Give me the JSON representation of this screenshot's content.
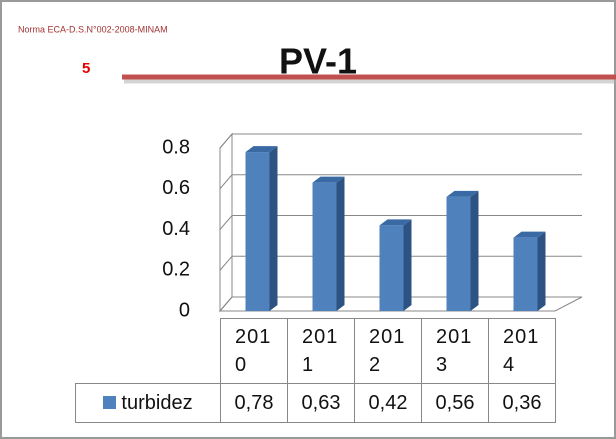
{
  "note": "Norma ECA-D.S.N°002-2008-MINAM",
  "page_number": "5",
  "chart_data": {
    "type": "bar3d",
    "title": "PV-1",
    "categories": [
      "2010",
      "2011",
      "2012",
      "2013",
      "2014"
    ],
    "series": [
      {
        "name": "turbidez",
        "color": "#4f81bd",
        "values": [
          0.78,
          0.63,
          0.42,
          0.56,
          0.36
        ],
        "value_labels": [
          "0,78",
          "0,63",
          "0,42",
          "0,56",
          "0,36"
        ]
      }
    ],
    "ylim": [
      0,
      0.8
    ],
    "yticks": [
      0,
      0.2,
      0.4,
      0.6,
      0.8
    ],
    "grid": true,
    "data_table": true
  }
}
